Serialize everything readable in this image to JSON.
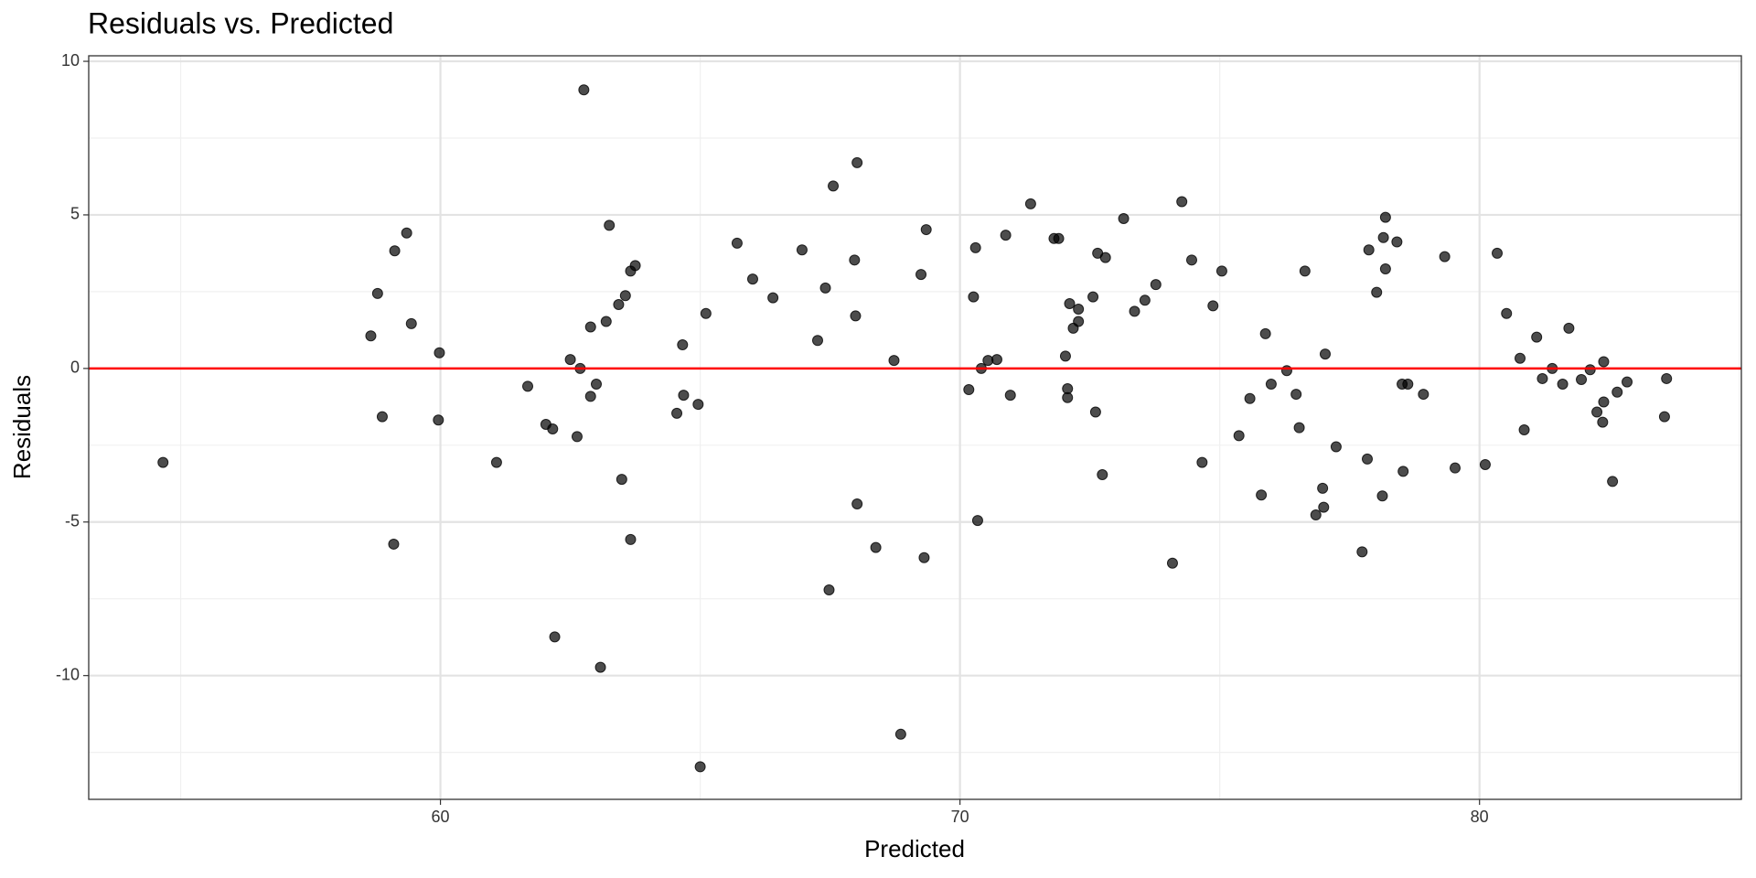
{
  "chart_data": {
    "type": "scatter",
    "title": "Residuals vs. Predicted",
    "x_label": "Predicted",
    "y_label": "Residuals",
    "xlim": [
      53.23,
      85.04
    ],
    "ylim": [
      -14.03,
      10.18
    ],
    "xticks": [
      60,
      70,
      80
    ],
    "yticks": [
      -10,
      -5,
      0,
      5,
      10
    ],
    "grid": true,
    "color": "#000000",
    "hline": 0,
    "hline_color": "#ff0000",
    "x": [
      54.66,
      58.66,
      58.79,
      58.88,
      59.12,
      59.1,
      59.35,
      59.44,
      59.98,
      59.96,
      61.08,
      61.68,
      62.03,
      62.16,
      62.2,
      62.5,
      62.63,
      62.69,
      62.76,
      62.89,
      62.89,
      63.0,
      63.08,
      63.19,
      63.25,
      63.43,
      63.49,
      63.56,
      63.66,
      63.75,
      63.66,
      64.55,
      64.66,
      64.68,
      64.96,
      65.0,
      65.11,
      65.71,
      66.01,
      66.4,
      66.96,
      67.26,
      67.41,
      67.48,
      67.56,
      67.97,
      67.99,
      68.02,
      68.02,
      68.38,
      68.73,
      68.86,
      69.25,
      69.31,
      69.35,
      70.17,
      70.26,
      70.3,
      70.34,
      70.41,
      70.54,
      70.71,
      70.88,
      70.97,
      71.36,
      71.81,
      71.9,
      72.03,
      72.07,
      72.07,
      72.11,
      72.18,
      72.28,
      72.28,
      72.56,
      72.61,
      72.65,
      72.74,
      72.8,
      73.15,
      73.36,
      73.56,
      73.77,
      74.09,
      74.27,
      74.46,
      74.66,
      74.87,
      75.04,
      75.37,
      75.58,
      75.8,
      75.88,
      75.99,
      76.29,
      76.47,
      76.53,
      76.64,
      76.85,
      76.98,
      77.0,
      77.03,
      77.24,
      77.74,
      77.84,
      77.87,
      78.02,
      78.13,
      78.15,
      78.19,
      78.19,
      78.41,
      78.51,
      78.53,
      78.62,
      78.92,
      79.33,
      79.53,
      80.11,
      80.34,
      80.52,
      80.78,
      80.86,
      81.1,
      81.21,
      81.4,
      81.6,
      81.72,
      81.96,
      82.13,
      82.26,
      82.37,
      82.39,
      82.39,
      82.56,
      82.65,
      82.84,
      83.56,
      83.6
    ],
    "values": [
      -3.06,
      1.06,
      2.44,
      -1.57,
      3.83,
      -5.72,
      4.41,
      1.46,
      0.51,
      -1.68,
      -3.06,
      -0.58,
      -1.82,
      -1.97,
      -8.74,
      0.29,
      -2.22,
      0.0,
      9.07,
      1.35,
      -0.91,
      -0.51,
      -9.73,
      1.53,
      4.66,
      2.08,
      -3.61,
      2.37,
      3.17,
      3.35,
      -5.57,
      -1.46,
      0.77,
      -0.87,
      -1.17,
      -12.97,
      1.79,
      4.08,
      2.91,
      2.3,
      3.86,
      0.91,
      2.62,
      -7.21,
      5.94,
      3.53,
      1.71,
      -4.41,
      6.7,
      -5.83,
      0.26,
      -11.91,
      3.06,
      -6.16,
      4.52,
      -0.69,
      2.33,
      3.93,
      -4.95,
      0.0,
      0.26,
      0.29,
      4.34,
      -0.87,
      5.36,
      4.23,
      4.23,
      0.4,
      -0.66,
      -0.95,
      2.11,
      1.31,
      1.93,
      1.53,
      2.33,
      -1.42,
      3.75,
      -3.46,
      3.61,
      4.88,
      1.86,
      2.22,
      2.73,
      -6.34,
      5.43,
      3.53,
      -3.06,
      2.04,
      3.17,
      -2.19,
      -0.98,
      -4.12,
      1.13,
      -0.51,
      -0.07,
      -0.84,
      -1.93,
      3.17,
      -4.77,
      -3.9,
      -4.52,
      0.47,
      -2.55,
      -5.97,
      -2.95,
      3.86,
      2.48,
      -4.15,
      4.26,
      4.92,
      3.24,
      4.12,
      -0.51,
      -3.35,
      -0.51,
      -0.84,
      3.64,
      -3.24,
      -3.13,
      3.75,
      1.79,
      0.33,
      -2.0,
      1.02,
      -0.33,
      0.0,
      -0.51,
      1.31,
      -0.36,
      -0.04,
      -1.42,
      -1.75,
      -1.09,
      0.22,
      -3.68,
      -0.77,
      -0.44,
      -1.57,
      -0.33
    ]
  }
}
